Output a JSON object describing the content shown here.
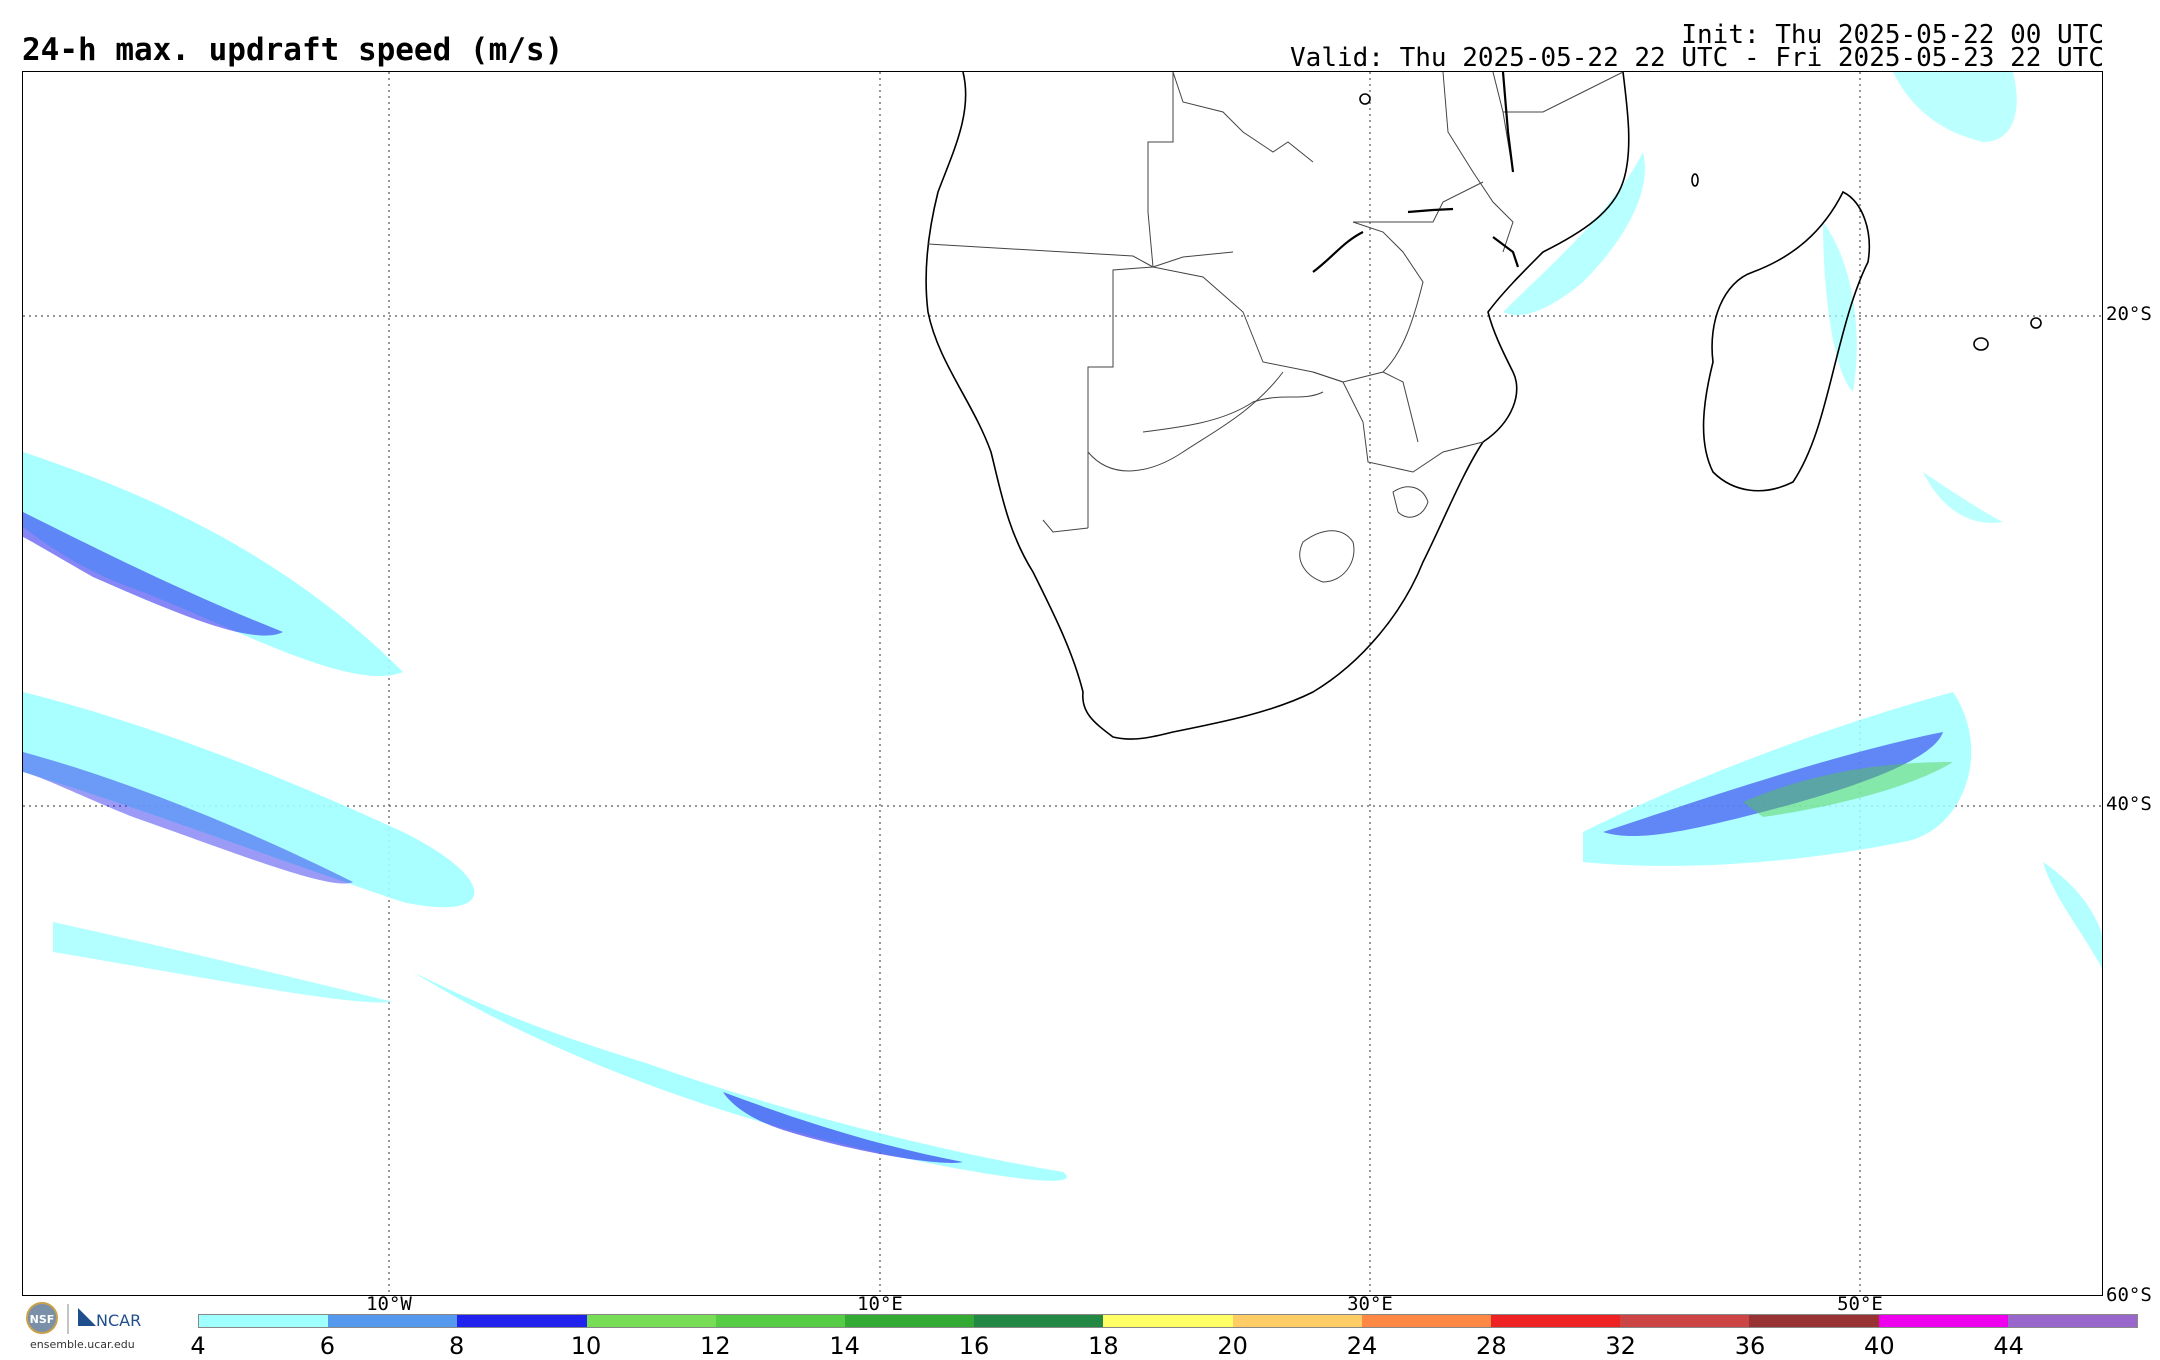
{
  "header": {
    "title": "24-h max. updraft speed (m/s)",
    "init": "Init: Thu 2025-05-22 00 UTC",
    "valid": "Valid: Thu 2025-05-22 22 UTC - Fri 2025-05-23 22 UTC"
  },
  "map": {
    "lat_labels": [
      "20°S",
      "40°S",
      "60°S"
    ],
    "lon_labels": [
      "10°W",
      "10°E",
      "30°E",
      "50°E"
    ]
  },
  "colorbar": {
    "labels": [
      "4",
      "6",
      "8",
      "10",
      "12",
      "14",
      "16",
      "18",
      "20",
      "24",
      "28",
      "32",
      "36",
      "40",
      "44"
    ],
    "colors": [
      "#a0ffff",
      "#5599ee",
      "#2222ee",
      "#77dd55",
      "#55cc44",
      "#33aa33",
      "#228844",
      "#ffff66",
      "#ffcc66",
      "#ff8844",
      "#ee2222",
      "#cc4444",
      "#993333",
      "#ee00ee",
      "#9966cc"
    ]
  },
  "logo": {
    "org_left": "NSF",
    "org_right": "NCAR",
    "url": "ensemble.ucar.edu"
  }
}
